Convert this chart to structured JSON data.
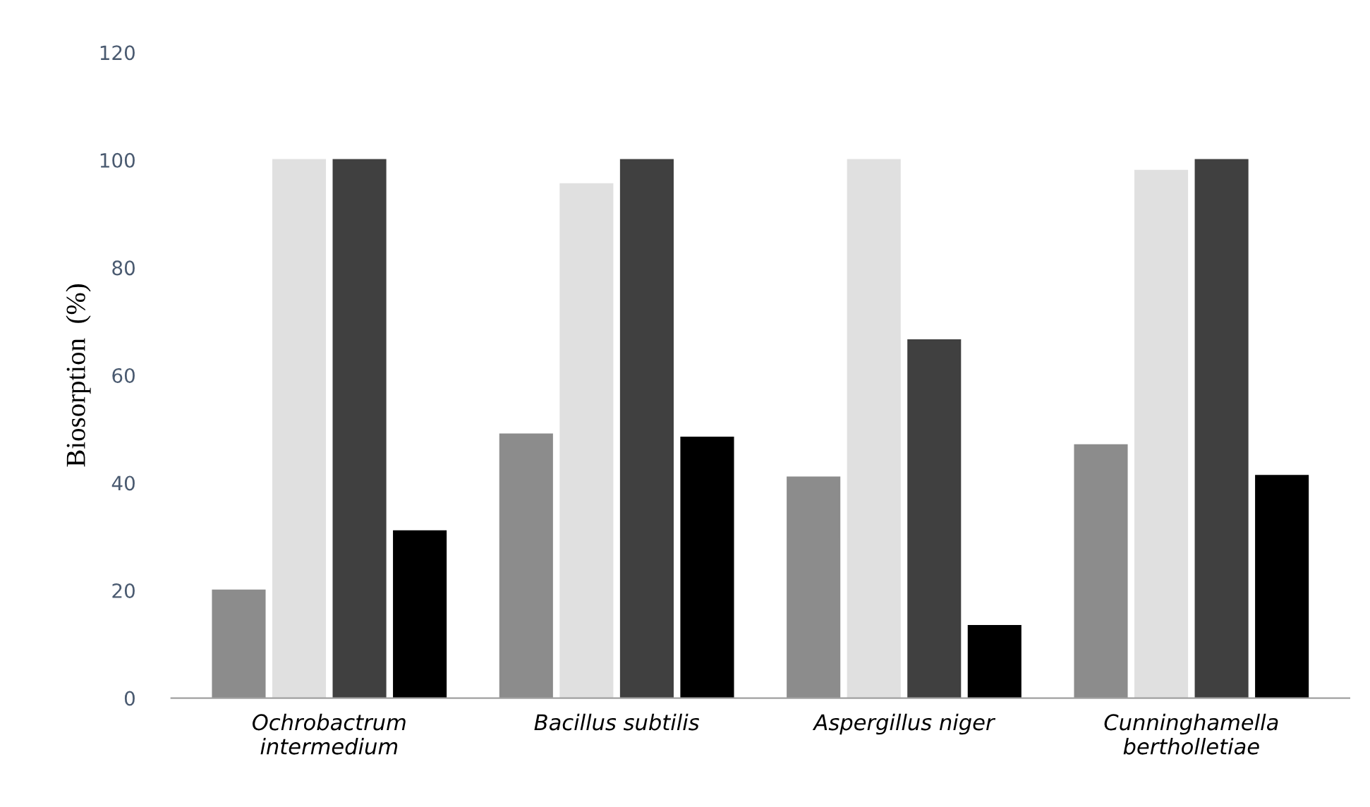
{
  "chart_data": {
    "type": "bar",
    "ylabel": "Biosorption  (%)",
    "categories": [
      "Ochrobactrum\nintermedium",
      "Bacillus subtilis",
      "Aspergillus niger",
      "Cunninghamella\nbertholletiae"
    ],
    "series": [
      {
        "color": "#8c8c8c",
        "values": [
          20,
          49,
          41,
          47
        ]
      },
      {
        "color": "#e0e0e0",
        "values": [
          100,
          95.5,
          100,
          98
        ]
      },
      {
        "color": "#404040",
        "values": [
          100,
          100,
          66.5,
          100
        ]
      },
      {
        "color": "#000000",
        "values": [
          31,
          48.4,
          13.4,
          41.3
        ]
      }
    ],
    "ylim": [
      0,
      120
    ],
    "yticks": [
      0,
      20,
      40,
      60,
      80,
      100,
      120
    ],
    "grid": false,
    "legend": false
  }
}
